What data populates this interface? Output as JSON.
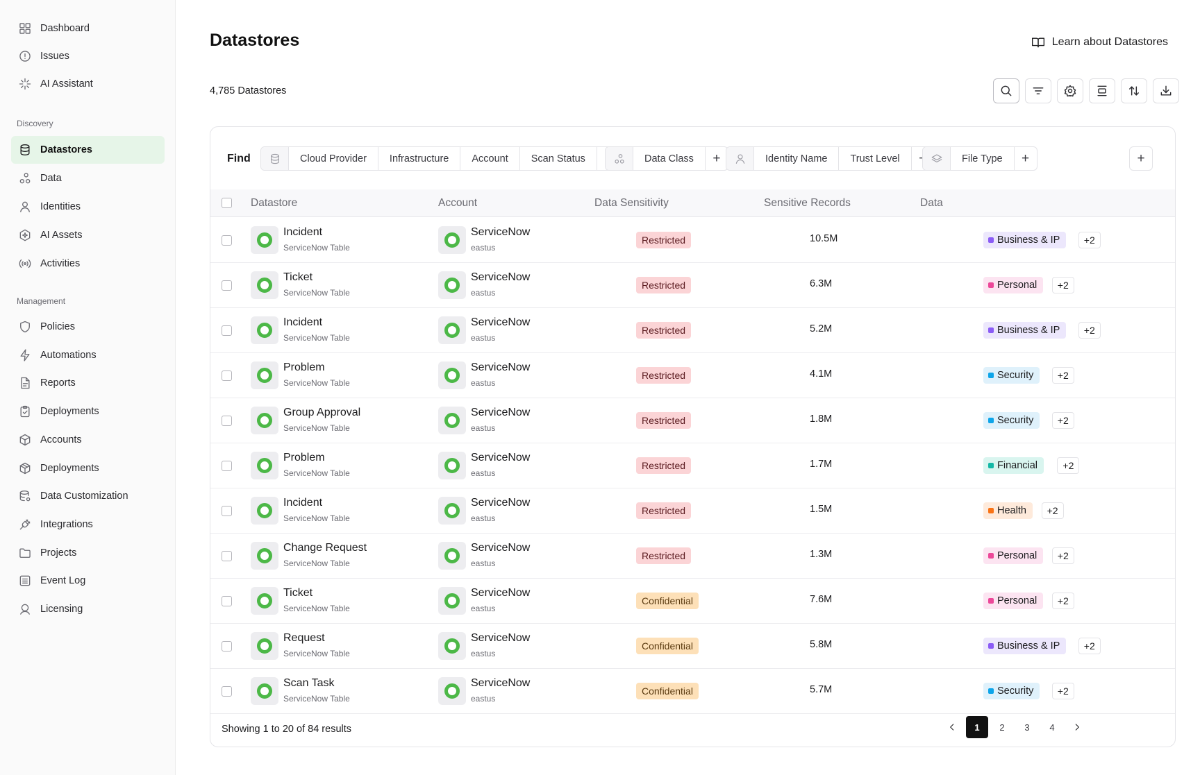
{
  "sidebar": {
    "top_items": [
      {
        "label": "Dashboard",
        "icon": "dashboard-icon"
      },
      {
        "label": "Issues",
        "icon": "alert-circle-icon"
      },
      {
        "label": "AI Assistant",
        "icon": "sparkle-icon"
      }
    ],
    "discovery_label": "Discovery",
    "discovery_items": [
      {
        "label": "Datastores",
        "icon": "database-icon",
        "active": true
      },
      {
        "label": "Data",
        "icon": "data-nodes-icon"
      },
      {
        "label": "Identities",
        "icon": "user-icon"
      },
      {
        "label": "AI Assets",
        "icon": "ai-hex-icon"
      },
      {
        "label": "Activities",
        "icon": "broadcast-icon"
      }
    ],
    "management_label": "Management",
    "management_items": [
      {
        "label": "Policies",
        "icon": "shield-icon"
      },
      {
        "label": "Automations",
        "icon": "bolt-icon"
      },
      {
        "label": "Reports",
        "icon": "report-icon"
      },
      {
        "label": "Deployments",
        "icon": "clipboard-check-icon"
      },
      {
        "label": "Accounts",
        "icon": "cube-icon"
      },
      {
        "label": "Deployments",
        "icon": "package-icon"
      },
      {
        "label": "Data Customization",
        "icon": "database-settings-icon"
      },
      {
        "label": "Integrations",
        "icon": "plug-icon"
      },
      {
        "label": "Projects",
        "icon": "folder-icon"
      },
      {
        "label": "Event Log",
        "icon": "list-icon"
      },
      {
        "label": "Licensing",
        "icon": "award-icon"
      }
    ]
  },
  "header": {
    "title": "Datastores",
    "learn_link": "Learn about Datastores",
    "count": "4,785 Datastores"
  },
  "toolbar": {
    "buttons": [
      "search-icon",
      "filter-icon",
      "settings-icon",
      "columns-icon",
      "sort-icon",
      "download-icon"
    ]
  },
  "filters": {
    "find_label": "Find",
    "groups": [
      {
        "icon": "database-icon",
        "chips": [
          "Cloud Provider",
          "Infrastructure",
          "Account",
          "Scan Status"
        ],
        "add": "+"
      },
      {
        "icon": "data-nodes-icon",
        "chips": [
          "Data Class"
        ],
        "add": "+"
      },
      {
        "icon": "user-icon",
        "chips": [
          "Identity Name",
          "Trust Level"
        ],
        "add": "+"
      },
      {
        "icon": "layers-icon",
        "chips": [
          "File Type"
        ],
        "add": "+"
      }
    ],
    "extra_add": "+"
  },
  "table": {
    "columns": [
      "Datastore",
      "Account",
      "Data Sensitivity",
      "Sensitive Records",
      "Data"
    ],
    "rows": [
      {
        "name": "Incident",
        "type": "ServiceNow Table",
        "account": "ServiceNow",
        "region": "eastus",
        "sensitivity": "Restricted",
        "records": "10.5M",
        "data": "Business & IP",
        "more": "+2"
      },
      {
        "name": "Ticket",
        "type": "ServiceNow Table",
        "account": "ServiceNow",
        "region": "eastus",
        "sensitivity": "Restricted",
        "records": "6.3M",
        "data": "Personal",
        "more": "+2"
      },
      {
        "name": "Incident",
        "type": "ServiceNow Table",
        "account": "ServiceNow",
        "region": "eastus",
        "sensitivity": "Restricted",
        "records": "5.2M",
        "data": "Business & IP",
        "more": "+2"
      },
      {
        "name": "Problem",
        "type": "ServiceNow Table",
        "account": "ServiceNow",
        "region": "eastus",
        "sensitivity": "Restricted",
        "records": "4.1M",
        "data": "Security",
        "more": "+2"
      },
      {
        "name": "Group Approval",
        "type": "ServiceNow Table",
        "account": "ServiceNow",
        "region": "eastus",
        "sensitivity": "Restricted",
        "records": "1.8M",
        "data": "Security",
        "more": "+2"
      },
      {
        "name": "Problem",
        "type": "ServiceNow Table",
        "account": "ServiceNow",
        "region": "eastus",
        "sensitivity": "Restricted",
        "records": "1.7M",
        "data": "Financial",
        "more": "+2"
      },
      {
        "name": "Incident",
        "type": "ServiceNow Table",
        "account": "ServiceNow",
        "region": "eastus",
        "sensitivity": "Restricted",
        "records": "1.5M",
        "data": "Health",
        "more": "+2"
      },
      {
        "name": "Change Request",
        "type": "ServiceNow Table",
        "account": "ServiceNow",
        "region": "eastus",
        "sensitivity": "Restricted",
        "records": "1.3M",
        "data": "Personal",
        "more": "+2"
      },
      {
        "name": "Ticket",
        "type": "ServiceNow Table",
        "account": "ServiceNow",
        "region": "eastus",
        "sensitivity": "Confidential",
        "records": "7.6M",
        "data": "Personal",
        "more": "+2"
      },
      {
        "name": "Request",
        "type": "ServiceNow Table",
        "account": "ServiceNow",
        "region": "eastus",
        "sensitivity": "Confidential",
        "records": "5.8M",
        "data": "Business & IP",
        "more": "+2"
      },
      {
        "name": "Scan Task",
        "type": "ServiceNow Table",
        "account": "ServiceNow",
        "region": "eastus",
        "sensitivity": "Confidential",
        "records": "5.7M",
        "data": "Security",
        "more": "+2"
      }
    ]
  },
  "data_tag_styles": {
    "Business & IP": {
      "bg": "#ece7fc",
      "dot": "#8b5cf6"
    },
    "Personal": {
      "bg": "#fce4f1",
      "dot": "#ec4899"
    },
    "Security": {
      "bg": "#dff1fb",
      "dot": "#0ea5e9"
    },
    "Financial": {
      "bg": "#d9f5ef",
      "dot": "#14b8a6"
    },
    "Health": {
      "bg": "#feeadb",
      "dot": "#f97316"
    }
  },
  "footer": {
    "summary": "Showing 1 to 20 of 84 results",
    "pages": [
      "1",
      "2",
      "3",
      "4"
    ],
    "current_page": "1"
  },
  "colors": {
    "accent_active_bg": "#e6f5e8",
    "servicenow_green": "#4cb847"
  }
}
